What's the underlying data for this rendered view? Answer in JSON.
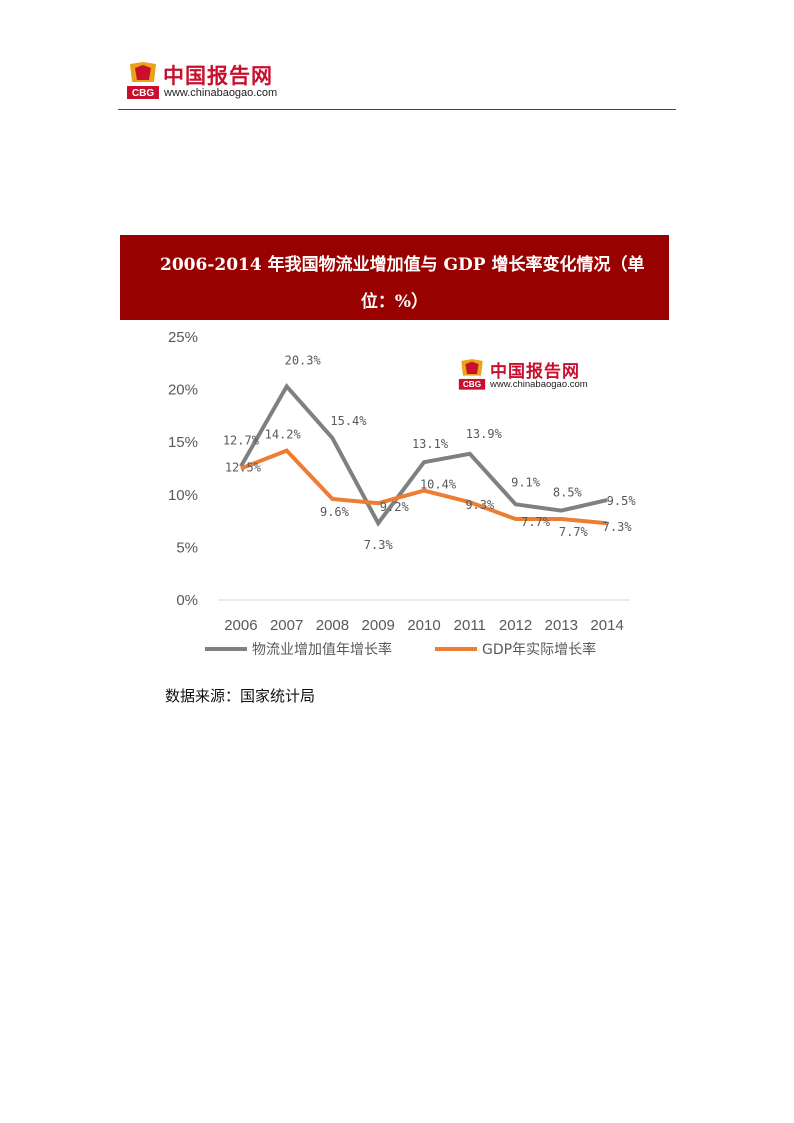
{
  "header": {
    "logo_cn": "中国报告网",
    "logo_url": "www.chinabaogao.com",
    "badge_text": "CBG"
  },
  "banner": {
    "title_line1": "2006-2014 年我国物流业增加值与 GDP 增长率变化情况（单",
    "title_line2": "位：%）",
    "color": "#990000"
  },
  "watermark": {
    "logo_cn": "中国报告网",
    "logo_url": "www.chinabaogao.com"
  },
  "chart_data": {
    "type": "line",
    "title": "",
    "xlabel": "",
    "ylabel": "",
    "x": [
      "2006",
      "2007",
      "2008",
      "2009",
      "2010",
      "2011",
      "2012",
      "2013",
      "2014"
    ],
    "ylim": [
      0,
      25
    ],
    "yticks": [
      "0%",
      "5%",
      "10%",
      "15%",
      "20%",
      "25%"
    ],
    "grid": false,
    "legend_position": "bottom",
    "series": [
      {
        "name": "物流业增加值年增长率",
        "color": "#808080",
        "values": [
          12.7,
          20.3,
          15.4,
          7.3,
          13.1,
          13.9,
          9.1,
          8.5,
          9.5
        ],
        "labels": [
          "12.7%",
          "20.3%",
          "15.4%",
          "7.3%",
          "13.1%",
          "13.9%",
          "9.1%",
          "8.5%",
          "9.5%"
        ]
      },
      {
        "name": "GDP年实际增长率",
        "color": "#ed7d31",
        "values": [
          12.5,
          14.2,
          9.6,
          9.2,
          10.4,
          9.3,
          7.7,
          7.7,
          7.3
        ],
        "labels": [
          "12.5%",
          "14.2%",
          "9.6%",
          "9.2%",
          "10.4%",
          "9.3%",
          "7.7%",
          "7.7%",
          "7.3%"
        ]
      }
    ]
  },
  "source": "数据来源：国家统计局"
}
